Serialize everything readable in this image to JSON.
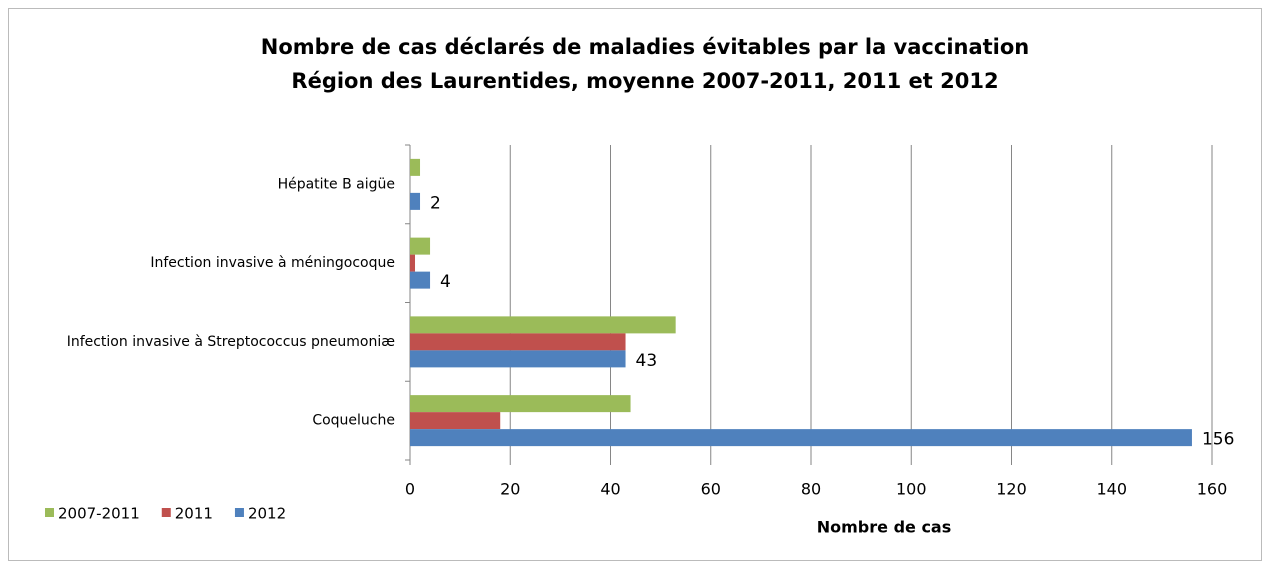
{
  "chart_data": {
    "type": "barh",
    "title": "Nombre de cas déclarés de maladies évitables par la vaccination",
    "subtitle": "Région des Laurentides, moyenne 2007-2011, 2011 et 2012",
    "xlabel": "Nombre de cas",
    "categories": [
      "Coqueluche",
      "Infection invasive à Streptococcus pneumoniæ",
      "Infection invasive à méningocoque",
      "Hépatite B aigüe"
    ],
    "series": [
      {
        "name": "2007-2011",
        "color": "#9bbb59",
        "values": [
          44,
          53,
          4,
          2
        ]
      },
      {
        "name": "2011",
        "color": "#c0504d",
        "values": [
          18,
          43,
          1,
          0
        ]
      },
      {
        "name": "2012",
        "color": "#4f81bd",
        "values": [
          156,
          43,
          4,
          2
        ],
        "data_labels": true
      }
    ],
    "xlim": [
      0,
      160
    ],
    "xticks": [
      0,
      20,
      40,
      60,
      80,
      100,
      120,
      140,
      160
    ],
    "grid": true,
    "legend": "bottom-left"
  }
}
